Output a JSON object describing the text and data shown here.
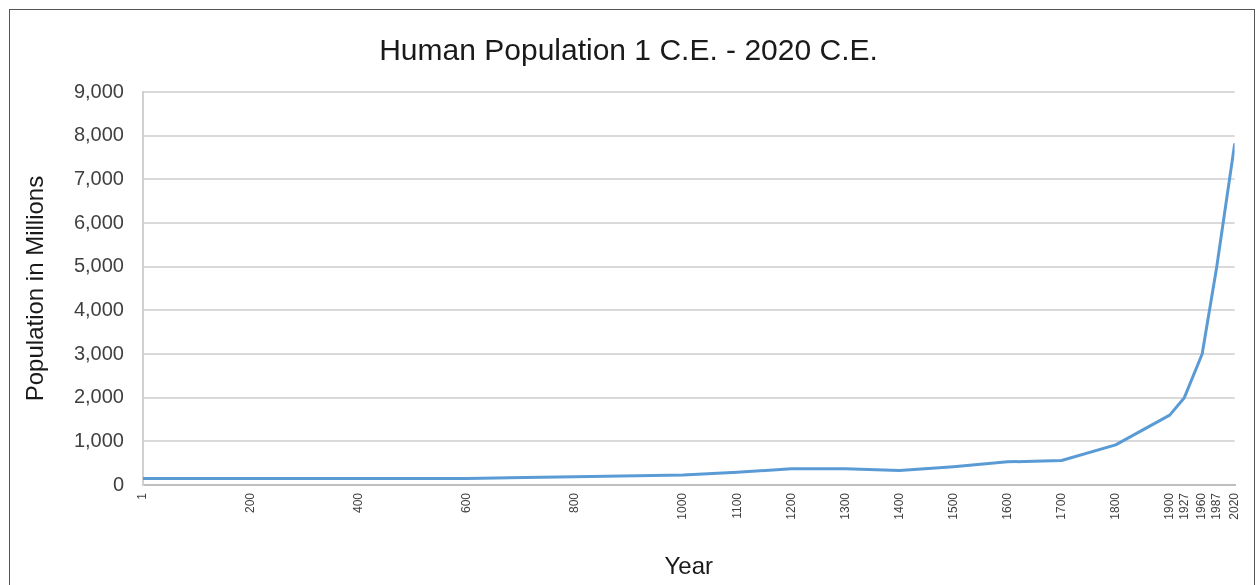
{
  "chart_data": {
    "type": "line",
    "title": "Human Population 1 C.E. - 2020 C.E.",
    "xlabel": "Year",
    "ylabel": "Population in Millions",
    "x": [
      1,
      200,
      400,
      600,
      800,
      1000,
      1100,
      1200,
      1300,
      1400,
      1500,
      1600,
      1700,
      1800,
      1900,
      1927,
      1960,
      1987,
      2020
    ],
    "series": [
      {
        "color": "#5b9bd5",
        "values": [
          150,
          150,
          150,
          150,
          190,
          230,
          290,
          370,
          370,
          330,
          420,
          530,
          560,
          920,
          1600,
          2000,
          3000,
          5000,
          7800
        ]
      }
    ],
    "xlim": [
      1,
      2020
    ],
    "xticks": [
      1,
      200,
      400,
      600,
      800,
      1000,
      1100,
      1200,
      1300,
      1400,
      1500,
      1600,
      1700,
      1800,
      1900,
      1927,
      1960,
      1987,
      2020
    ],
    "ylim": [
      0,
      9000
    ],
    "yticks": [
      0,
      {
        "value": 1000,
        "label": "1,000"
      },
      {
        "value": 2000,
        "label": "2,000"
      },
      {
        "value": 3000,
        "label": "3,000"
      },
      {
        "value": 4000,
        "label": "4,000"
      },
      {
        "value": 5000,
        "label": "5,000"
      },
      {
        "value": 6000,
        "label": "6,000"
      },
      {
        "value": 7000,
        "label": "7,000"
      },
      {
        "value": 8000,
        "label": "8,000"
      },
      {
        "value": 9000,
        "label": "9,000"
      }
    ],
    "grid": "y",
    "line_style": "solid"
  }
}
